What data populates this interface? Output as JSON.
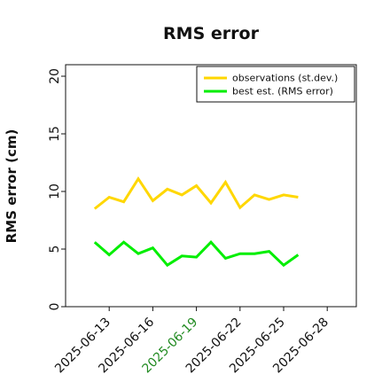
{
  "chart_data": {
    "type": "line",
    "title": "RMS error",
    "ylabel": "RMS error (cm)",
    "xlabel": "",
    "ylim": [
      0,
      21
    ],
    "y_ticks": [
      0,
      5,
      10,
      15,
      20
    ],
    "x_ticks": [
      {
        "label": "2025-06-13",
        "color": "#111111"
      },
      {
        "label": "2025-06-16",
        "color": "#111111"
      },
      {
        "label": "2025-06-19",
        "color": "#228B22"
      },
      {
        "label": "2025-06-22",
        "color": "#111111"
      },
      {
        "label": "2025-06-25",
        "color": "#111111"
      },
      {
        "label": "2025-06-28",
        "color": "#111111"
      }
    ],
    "xlim": [
      "2025-06-10",
      "2025-06-30"
    ],
    "grid": false,
    "legend_position": "top-right",
    "x": [
      "2025-06-12",
      "2025-06-13",
      "2025-06-14",
      "2025-06-15",
      "2025-06-16",
      "2025-06-17",
      "2025-06-18",
      "2025-06-19",
      "2025-06-20",
      "2025-06-21",
      "2025-06-22",
      "2025-06-23",
      "2025-06-24",
      "2025-06-25",
      "2025-06-26"
    ],
    "series": [
      {
        "name": "observations (st.dev.)",
        "color": "#FFD700",
        "values": [
          8.5,
          9.5,
          9.1,
          11.1,
          9.2,
          10.2,
          9.7,
          10.5,
          9.0,
          10.8,
          8.6,
          9.7,
          9.3,
          9.7,
          9.5
        ]
      },
      {
        "name": "best est. (RMS error)",
        "color": "#00EE00",
        "values": [
          5.6,
          4.5,
          5.6,
          4.6,
          5.1,
          3.6,
          4.4,
          4.3,
          5.6,
          4.2,
          4.6,
          4.6,
          4.8,
          3.6,
          4.5
        ]
      }
    ]
  }
}
